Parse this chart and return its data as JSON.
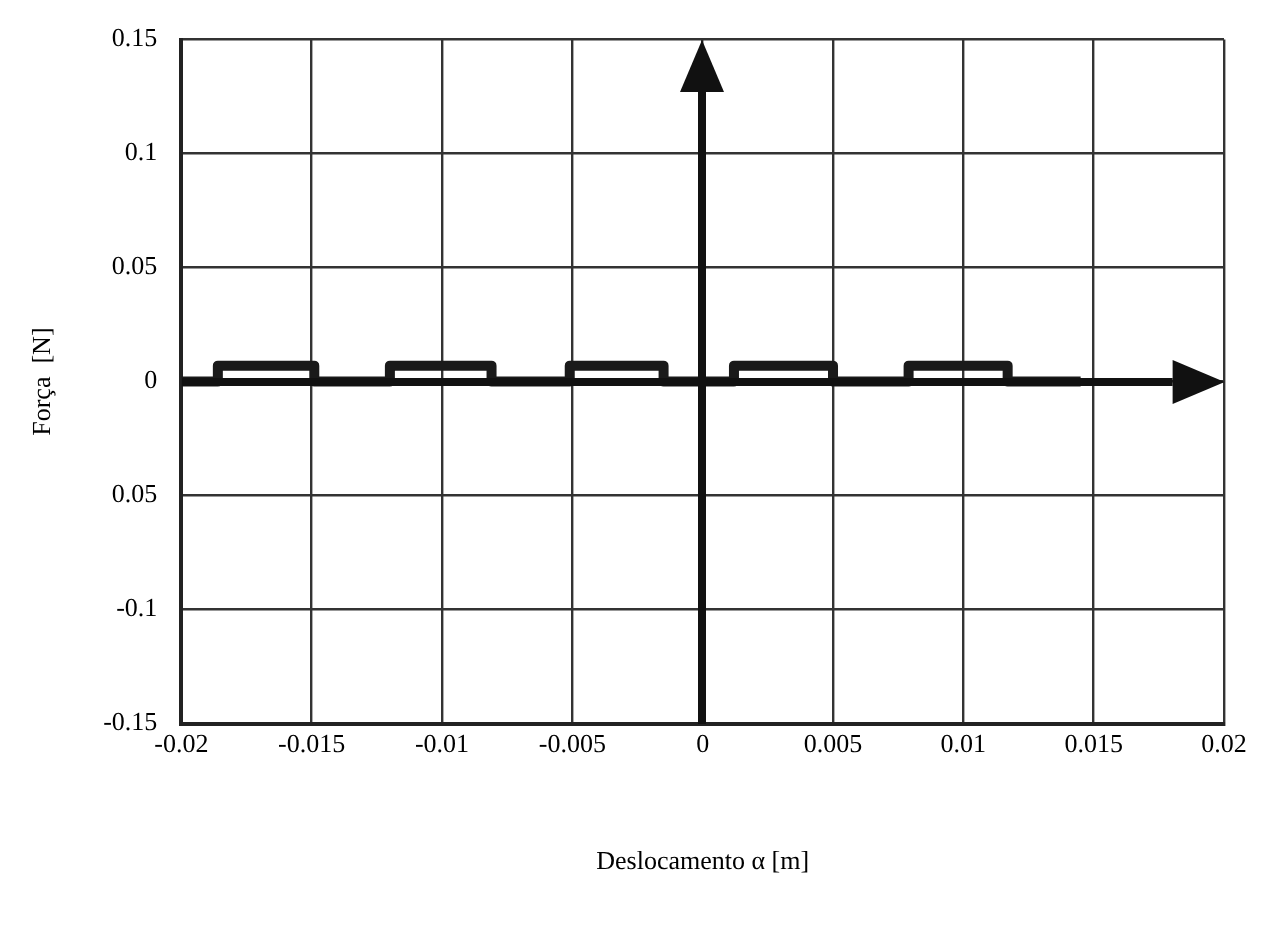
{
  "chart_data": {
    "type": "line",
    "xlabel": "Deslocamento α [m]",
    "ylabel": "Força  [N]",
    "x": [
      -0.02,
      -0.0186,
      -0.0186,
      -0.0149,
      -0.0149,
      -0.012,
      -0.012,
      -0.0081,
      -0.0081,
      -0.0051,
      -0.0051,
      -0.0015,
      -0.0015,
      0.0012,
      0.0012,
      0.005,
      0.005,
      0.0079,
      0.0079,
      0.0117,
      0.0117,
      0.0145
    ],
    "series": [
      {
        "color": "#1a1a1a",
        "values": [
          0,
          0,
          0.007,
          0.007,
          0,
          0,
          0.007,
          0.007,
          0,
          0,
          0.007,
          0.007,
          0,
          0,
          0.007,
          0.007,
          0,
          0,
          0.007,
          0.007,
          0,
          0
        ]
      }
    ],
    "xlim": [
      -0.02,
      0.02
    ],
    "xticks": [
      -0.02,
      -0.015,
      -0.01,
      -0.005,
      0,
      0.005,
      0.01,
      0.015,
      0.02
    ],
    "ylim": [
      -0.15,
      0.15
    ],
    "yticks": [
      -0.15,
      -0.1,
      {
        "value": -0.05,
        "label": "0.05"
      },
      0,
      0.05,
      0.1,
      0.15
    ],
    "grid": true,
    "legend": false,
    "marker": "none",
    "line_style": "solid"
  }
}
